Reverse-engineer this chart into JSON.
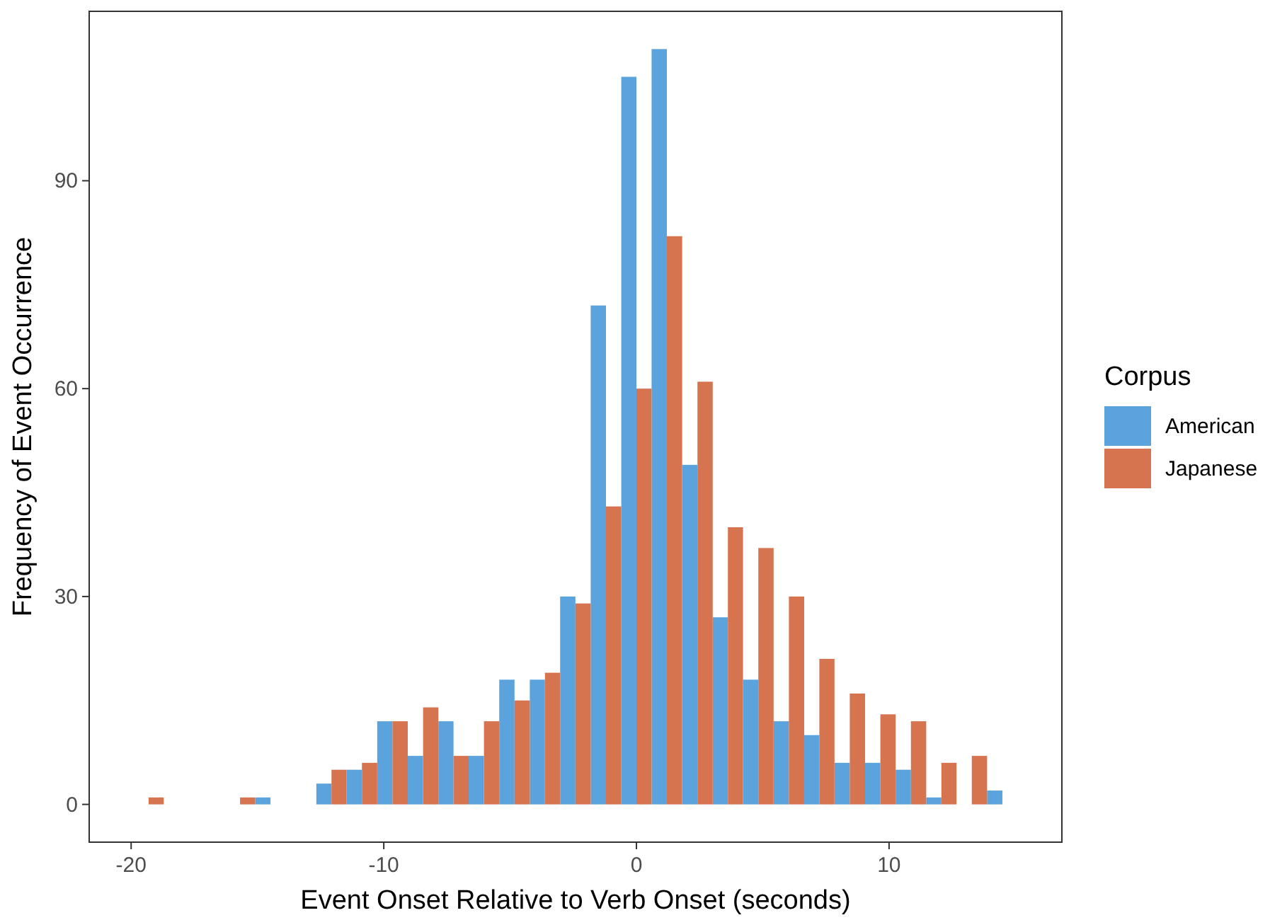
{
  "chart_data": {
    "type": "histogram",
    "xlabel": "Event Onset Relative to Verb Onset (seconds)",
    "ylabel": "Frequency of Event Occurrence",
    "legend_title": "Corpus",
    "legend": "right",
    "bins": [
      -19.91,
      -18.71,
      -17.5,
      -16.29,
      -15.09,
      -13.88,
      -12.67,
      -11.47,
      -10.26,
      -9.05,
      -7.84,
      -6.64,
      -5.43,
      -4.22,
      -3.02,
      -1.81,
      -0.6,
      0.6,
      1.81,
      3.02,
      4.22,
      5.43,
      6.64,
      7.84,
      9.05,
      10.26,
      11.47,
      12.67,
      13.88,
      15.09
    ],
    "series": [
      {
        "name": "American",
        "color": "#5ba3dc",
        "values": [
          0,
          0,
          0,
          0,
          1,
          0,
          3,
          5,
          12,
          7,
          12,
          7,
          18,
          18,
          30,
          72,
          105,
          109,
          49,
          27,
          18,
          12,
          10,
          6,
          6,
          5,
          1,
          0,
          2
        ]
      },
      {
        "name": "Japanese",
        "color": "#d77450",
        "values": [
          1,
          0,
          0,
          1,
          0,
          0,
          5,
          6,
          12,
          14,
          7,
          12,
          15,
          19,
          29,
          43,
          60,
          82,
          61,
          40,
          37,
          30,
          21,
          16,
          13,
          12,
          6,
          7,
          0
        ]
      }
    ],
    "xlim": [
      -21.66,
      16.84
    ],
    "ylim": [
      -5.45,
      114.45
    ],
    "xticks": [
      -20,
      -10,
      0,
      10
    ],
    "yticks": [
      0,
      30,
      60,
      90
    ]
  }
}
